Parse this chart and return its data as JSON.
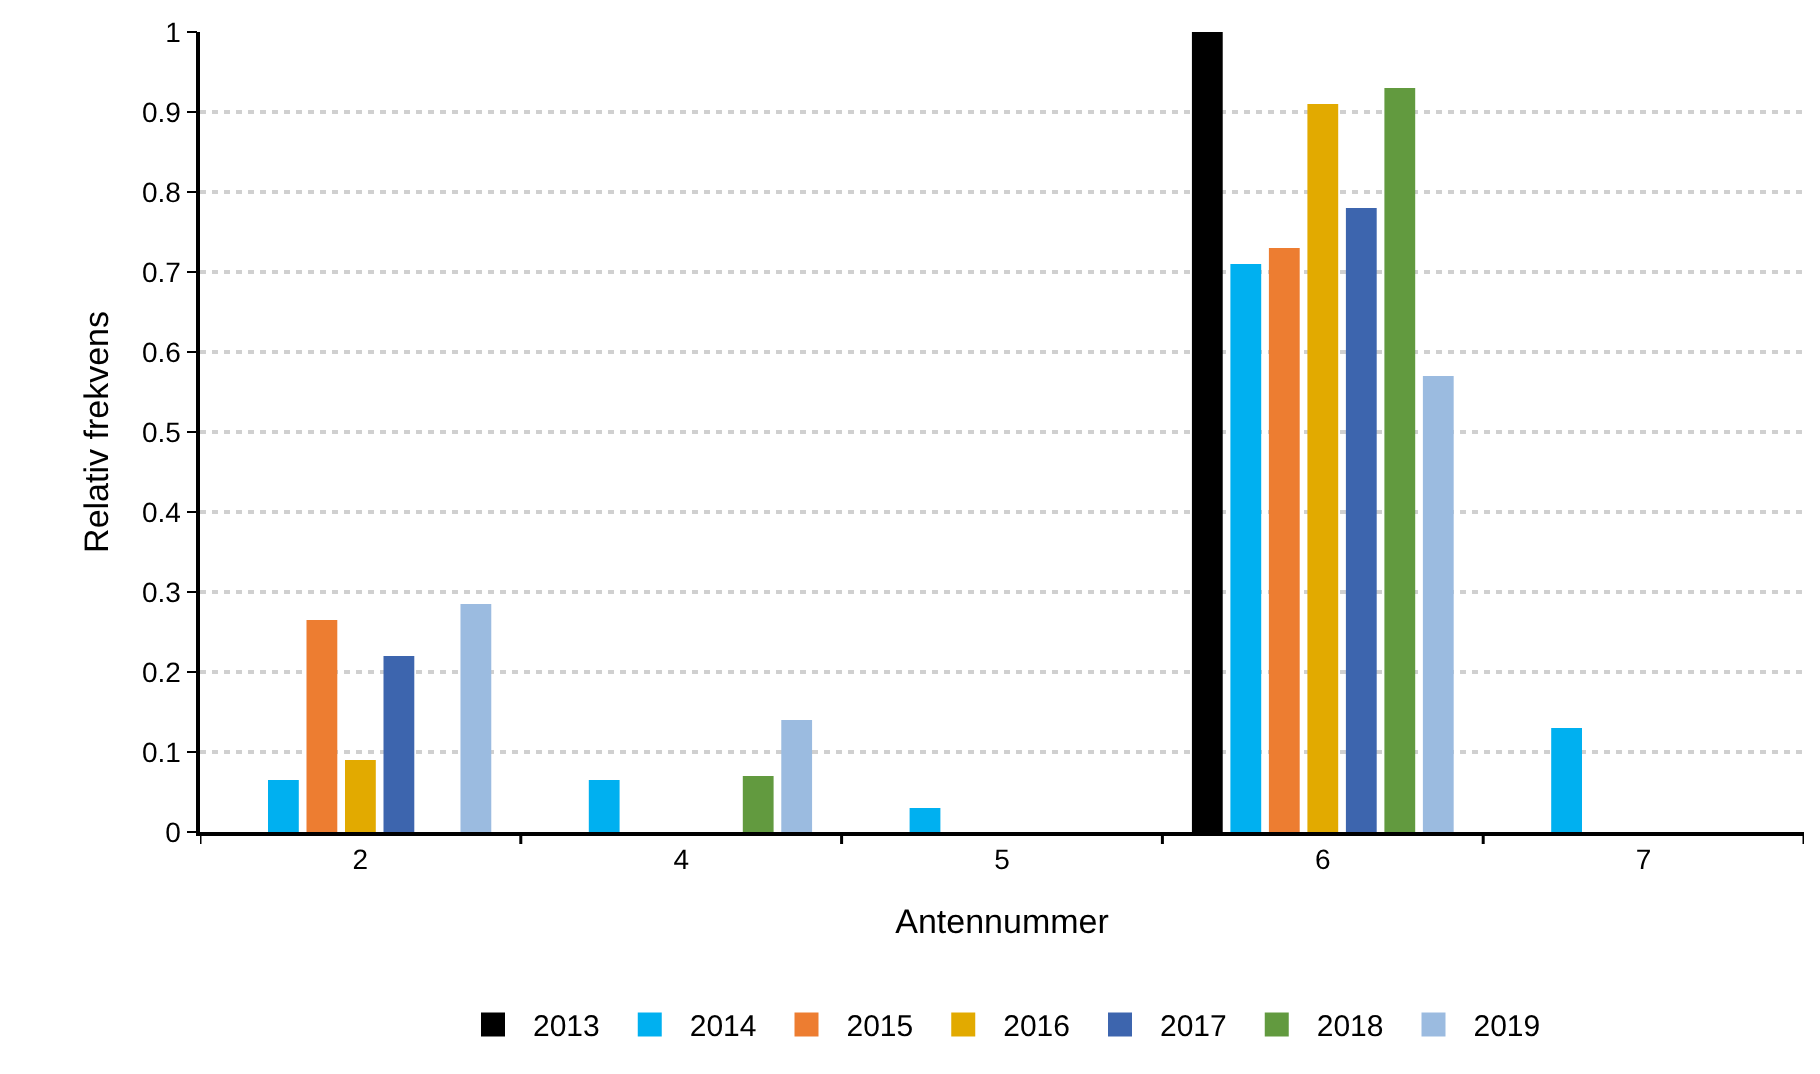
{
  "chart_data": {
    "type": "bar",
    "xlabel": "Antennummer",
    "ylabel": "Relativ frekvens",
    "categories": [
      "2",
      "4",
      "5",
      "6",
      "7"
    ],
    "series": [
      {
        "name": "2013",
        "color": "#000000",
        "values": [
          0,
          0,
          0,
          1.0,
          0
        ]
      },
      {
        "name": "2014",
        "color": "#00b0f0",
        "values": [
          0.065,
          0.065,
          0.03,
          0.71,
          0.13
        ]
      },
      {
        "name": "2015",
        "color": "#ed7d31",
        "values": [
          0.265,
          0,
          0,
          0.73,
          0
        ]
      },
      {
        "name": "2016",
        "color": "#e2aa00",
        "values": [
          0.09,
          0,
          0,
          0.91,
          0
        ]
      },
      {
        "name": "2017",
        "color": "#3d65ae",
        "values": [
          0.22,
          0,
          0,
          0.78,
          0
        ]
      },
      {
        "name": "2018",
        "color": "#629a3f",
        "values": [
          0,
          0.07,
          0,
          0.93,
          0
        ]
      },
      {
        "name": "2019",
        "color": "#9bbbe0",
        "values": [
          0.285,
          0.14,
          0,
          0.57,
          0
        ]
      }
    ],
    "ylim": [
      0,
      1
    ],
    "yticks": [
      0,
      0.1,
      0.2,
      0.3,
      0.4,
      0.5,
      0.6,
      0.7,
      0.8,
      0.9,
      1
    ],
    "grid": "y",
    "legend": "bottom"
  }
}
